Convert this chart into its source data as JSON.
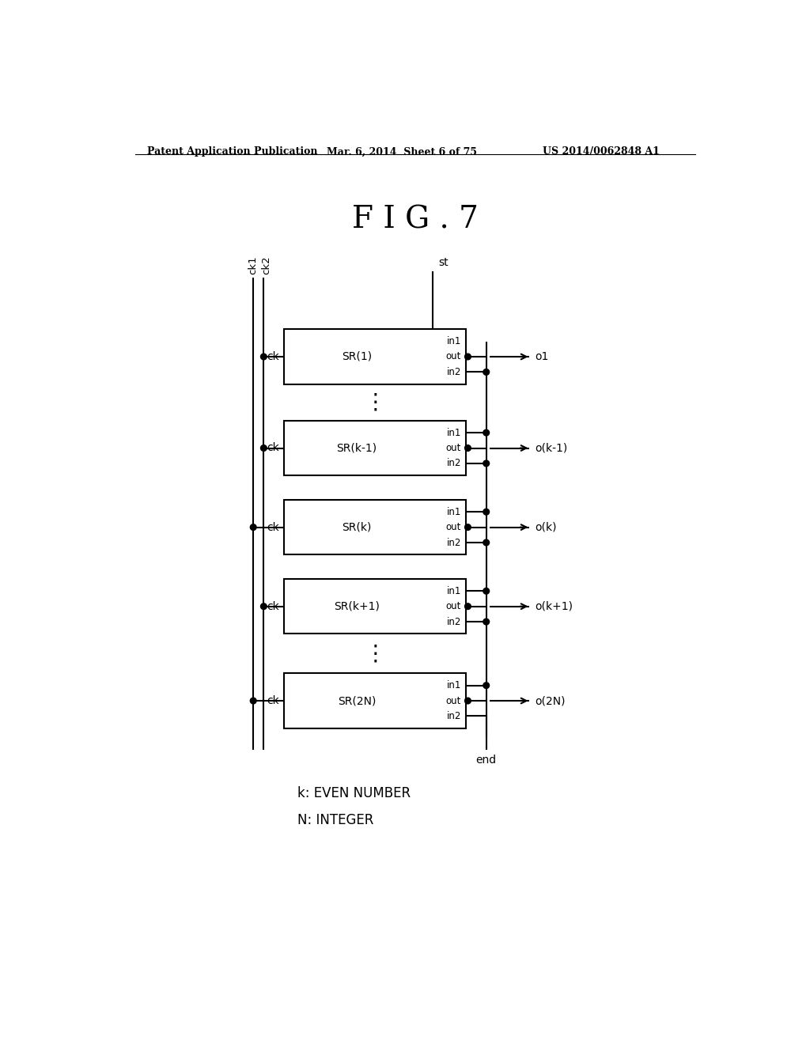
{
  "title": "F I G . 7",
  "header_left": "Patent Application Publication",
  "header_mid": "Mar. 6, 2014  Sheet 6 of 75",
  "header_right": "US 2014/0062848 A1",
  "bg_color": "#ffffff",
  "text_color": "#000000",
  "blocks": [
    {
      "name": "SR(1)",
      "output": "o1"
    },
    {
      "name": "SR(k-1)",
      "output": "o(k-1)"
    },
    {
      "name": "SR(k)",
      "output": "o(k)"
    },
    {
      "name": "SR(k+1)",
      "output": "o(k+1)"
    },
    {
      "name": "SR(2N)",
      "output": "o(2N)"
    }
  ],
  "footnote1": "k: EVEN NUMBER",
  "footnote2": "N: INTEGER"
}
